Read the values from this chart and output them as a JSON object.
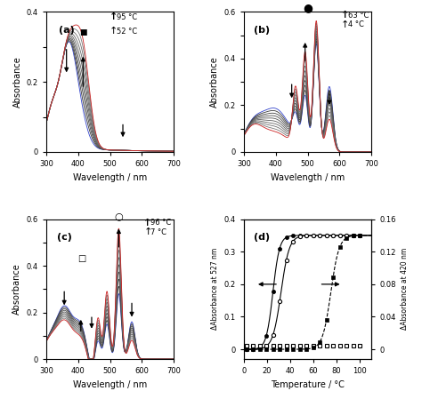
{
  "colors": {
    "blue": "#3344cc",
    "red": "#cc2222"
  },
  "panel_a": {
    "label": "(a)",
    "temp_high": "95 °C",
    "temp_low": "52 °C",
    "ylim": [
      0,
      0.4
    ],
    "ytick_labels": [
      "0",
      "",
      "0.2",
      "",
      "0.4"
    ]
  },
  "panel_b": {
    "label": "(b)",
    "temp_high": "63 °C",
    "temp_low": "4 °C",
    "ylim": [
      0,
      0.6
    ],
    "ytick_labels": [
      "0",
      "",
      "0.2",
      "",
      "0.4",
      "",
      "0.6"
    ]
  },
  "panel_c": {
    "label": "(c)",
    "temp_high": "96 °C",
    "temp_low": "7 °C",
    "ylim": [
      0,
      0.6
    ],
    "ytick_labels": [
      "0",
      "",
      "0.2",
      "",
      "0.4",
      "",
      "0.6"
    ]
  },
  "panel_d": {
    "label": "(d)",
    "ylabel_left": "ΔAbsorbance at 527 nm",
    "ylabel_right": "ΔAbsorbance at 420 nm",
    "xlabel": "Temperature / °C",
    "xlim": [
      0,
      110
    ],
    "ylim_left": [
      -0.04,
      0.4
    ],
    "ylim_right": [
      -0.016,
      0.16
    ],
    "yticks_left": [
      0.0,
      0.1,
      0.2,
      0.3,
      0.4
    ],
    "yticks_right": [
      0.0,
      0.04,
      0.08,
      0.12,
      0.16
    ],
    "xticks": [
      0,
      20,
      40,
      60,
      80,
      100
    ]
  }
}
